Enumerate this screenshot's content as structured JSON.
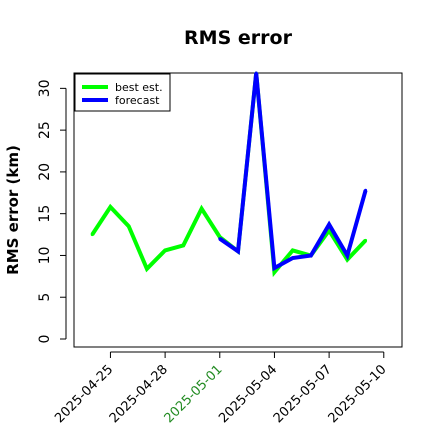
{
  "chart_data": {
    "type": "line",
    "title": "RMS error",
    "xlabel": "",
    "ylabel": "RMS error (km)",
    "ylim": [
      0,
      32
    ],
    "yticks": [
      0,
      5,
      10,
      15,
      20,
      25,
      30
    ],
    "xlim": [
      "2025-04-23",
      "2025-05-11"
    ],
    "xticks": [
      "2025-04-25",
      "2025-04-28",
      "2025-05-01",
      "2025-05-04",
      "2025-05-07",
      "2025-05-10"
    ],
    "highlight_tick": "2025-05-01",
    "highlight_color": "#228B22",
    "grid": false,
    "legend_position": "top-left",
    "series": [
      {
        "name": "best est.",
        "color": "#00ff00",
        "x": [
          "2025-04-24",
          "2025-04-25",
          "2025-04-26",
          "2025-04-27",
          "2025-04-28",
          "2025-04-29",
          "2025-04-30",
          "2025-05-01",
          "2025-05-02",
          "2025-05-03",
          "2025-05-04",
          "2025-05-05",
          "2025-05-06",
          "2025-05-07",
          "2025-05-08",
          "2025-05-09"
        ],
        "y": [
          12.5,
          15.8,
          13.5,
          8.4,
          10.6,
          11.2,
          15.6,
          12.2,
          10.5,
          32.0,
          8.0,
          10.6,
          10.0,
          13.0,
          9.5,
          11.8
        ]
      },
      {
        "name": "forecast",
        "color": "#0000ff",
        "x": [
          "2025-05-01",
          "2025-05-02",
          "2025-05-03",
          "2025-05-04",
          "2025-05-05",
          "2025-05-06",
          "2025-05-07",
          "2025-05-08",
          "2025-05-09"
        ],
        "y": [
          12.0,
          10.5,
          32.0,
          8.5,
          9.7,
          10.0,
          13.7,
          10.0,
          17.8
        ]
      }
    ]
  }
}
